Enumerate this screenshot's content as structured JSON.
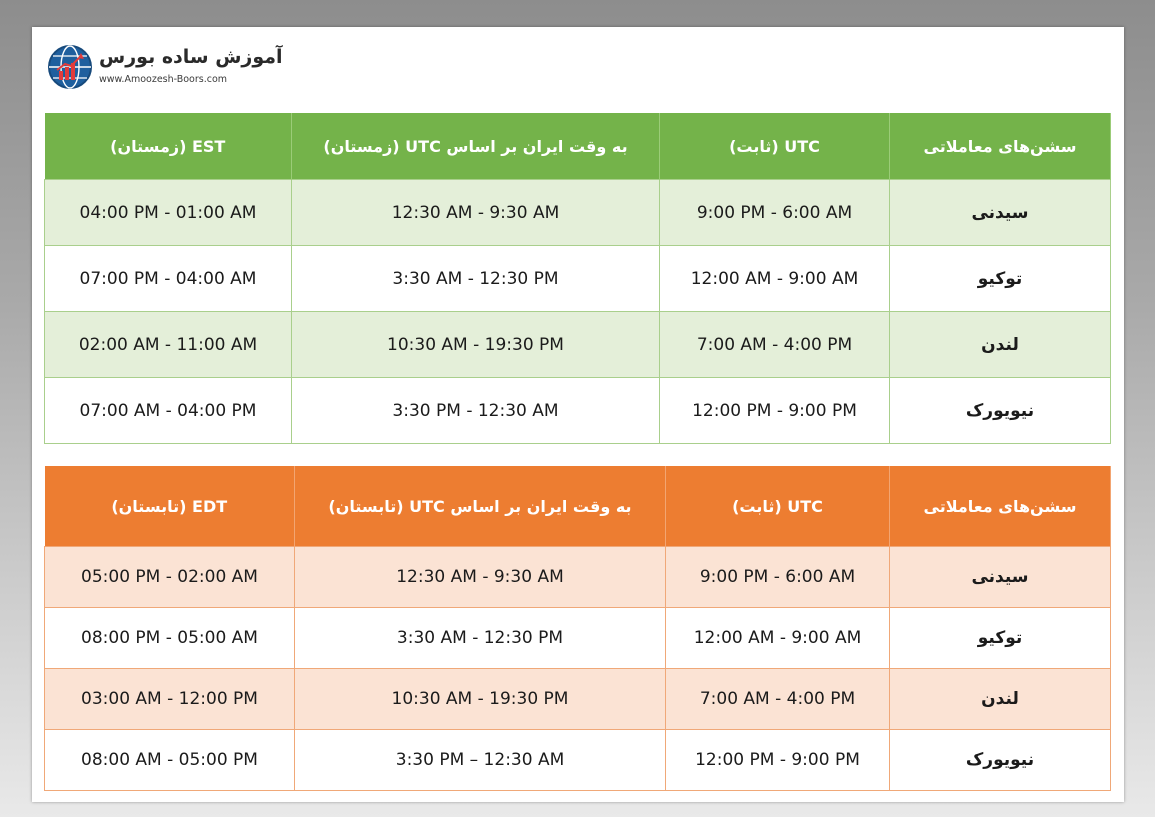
{
  "logo": {
    "title": "آموزش ساده بورس",
    "url": "www.Amoozesh-Boors.com",
    "icon": "globe-chart-icon"
  },
  "winter_table": {
    "headers": {
      "session": "سشن‌های معاملاتی",
      "utc": "UTC (ثابت)",
      "iran": "به وقت ایران بر اساس UTC (زمستان)",
      "est": "EST (زمستان)"
    },
    "rows": [
      {
        "city": "سیدنی",
        "utc": "9:00 PM - 6:00 AM",
        "iran": "12:30 AM - 9:30 AM",
        "est": "04:00 PM - 01:00 AM"
      },
      {
        "city": "توکیو",
        "utc": "12:00 AM - 9:00 AM",
        "iran": "3:30 AM - 12:30 PM",
        "est": "07:00 PM - 04:00 AM"
      },
      {
        "city": "لندن",
        "utc": "7:00 AM - 4:00 PM",
        "iran": "10:30 AM - 19:30 PM",
        "est": "02:00 AM - 11:00 AM"
      },
      {
        "city": "نیویورک",
        "utc": "12:00 PM - 9:00 PM",
        "iran": "3:30 PM - 12:30 AM",
        "est": "07:00 AM - 04:00 PM"
      }
    ]
  },
  "summer_table": {
    "headers": {
      "session": "سشن‌های معاملاتی",
      "utc": "UTC (ثابت)",
      "iran": "به وقت ایران بر اساس UTC (تابستان)",
      "edt": "EDT (تابستان)"
    },
    "rows": [
      {
        "city": "سیدنی",
        "utc": "9:00 PM - 6:00 AM",
        "iran": "12:30 AM - 9:30 AM",
        "edt": "05:00 PM - 02:00 AM"
      },
      {
        "city": "توکیو",
        "utc": "12:00 AM - 9:00 AM",
        "iran": "3:30 AM - 12:30 PM",
        "edt": "08:00 PM - 05:00 AM"
      },
      {
        "city": "لندن",
        "utc": "7:00 AM - 4:00 PM",
        "iran": "10:30 AM - 19:30 PM",
        "edt": "03:00 AM - 12:00 PM"
      },
      {
        "city": "نیویورک",
        "utc": "12:00 PM - 9:00 PM",
        "iran": "3:30 PM – 12:30 AM",
        "edt": "08:00 AM - 05:00 PM"
      }
    ]
  },
  "colors": {
    "winter_header": "#74b34a",
    "winter_shade": "#e4efd9",
    "summer_header": "#ed7d31",
    "summer_shade": "#fbe3d4"
  }
}
